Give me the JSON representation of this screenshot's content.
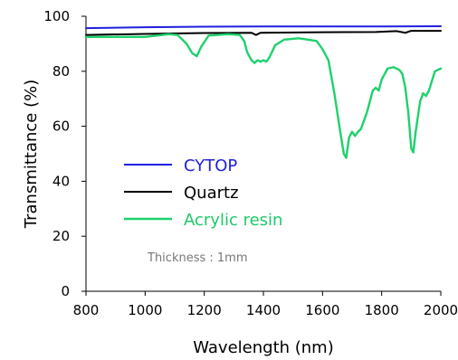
{
  "chart_data": {
    "type": "line",
    "xlabel": "Wavelength (nm)",
    "ylabel": "Transmittance (%)",
    "xlim": [
      800,
      2000
    ],
    "ylim": [
      0,
      100
    ],
    "x_ticks": [
      800,
      1000,
      1200,
      1400,
      1600,
      1800,
      2000
    ],
    "y_ticks": [
      0,
      20,
      40,
      60,
      80,
      100
    ],
    "grid": false,
    "legend_position": "center-left",
    "annotation": "Thickness : 1mm",
    "series": [
      {
        "name": "CYTOP",
        "color": "#1f1fe0",
        "points": [
          [
            800,
            95.7
          ],
          [
            1000,
            96.0
          ],
          [
            1200,
            96.2
          ],
          [
            1400,
            96.3
          ],
          [
            1600,
            96.3
          ],
          [
            1800,
            96.3
          ],
          [
            2000,
            96.4
          ]
        ]
      },
      {
        "name": "Quartz",
        "color": "#000000",
        "points": [
          [
            800,
            93.2
          ],
          [
            1000,
            93.6
          ],
          [
            1200,
            93.9
          ],
          [
            1360,
            94.0
          ],
          [
            1375,
            93.2
          ],
          [
            1390,
            94.0
          ],
          [
            1600,
            94.2
          ],
          [
            1780,
            94.3
          ],
          [
            1850,
            94.6
          ],
          [
            1880,
            94.0
          ],
          [
            1900,
            94.7
          ],
          [
            2000,
            94.7
          ]
        ]
      },
      {
        "name": "Acrylic resin",
        "color": "#1ed16c",
        "points": [
          [
            800,
            92.5
          ],
          [
            900,
            92.5
          ],
          [
            1000,
            92.5
          ],
          [
            1080,
            93.5
          ],
          [
            1110,
            93.2
          ],
          [
            1140,
            90.0
          ],
          [
            1160,
            86.5
          ],
          [
            1175,
            85.5
          ],
          [
            1190,
            89.0
          ],
          [
            1215,
            93.0
          ],
          [
            1280,
            93.5
          ],
          [
            1320,
            93.2
          ],
          [
            1335,
            91.0
          ],
          [
            1345,
            87.0
          ],
          [
            1360,
            84.0
          ],
          [
            1370,
            83.0
          ],
          [
            1380,
            84.0
          ],
          [
            1390,
            83.5
          ],
          [
            1400,
            84.0
          ],
          [
            1410,
            83.5
          ],
          [
            1420,
            85.0
          ],
          [
            1440,
            89.5
          ],
          [
            1470,
            91.5
          ],
          [
            1520,
            92.0
          ],
          [
            1580,
            91.0
          ],
          [
            1600,
            88.0
          ],
          [
            1620,
            84.0
          ],
          [
            1640,
            72.0
          ],
          [
            1660,
            58.0
          ],
          [
            1672,
            50.0
          ],
          [
            1680,
            48.5
          ],
          [
            1690,
            56.0
          ],
          [
            1700,
            58.0
          ],
          [
            1710,
            56.5
          ],
          [
            1720,
            58.0
          ],
          [
            1730,
            59.0
          ],
          [
            1750,
            65.0
          ],
          [
            1770,
            73.0
          ],
          [
            1780,
            74.0
          ],
          [
            1790,
            73.0
          ],
          [
            1800,
            77.0
          ],
          [
            1820,
            81.0
          ],
          [
            1840,
            81.5
          ],
          [
            1860,
            80.5
          ],
          [
            1870,
            79.0
          ],
          [
            1880,
            74.0
          ],
          [
            1890,
            65.0
          ],
          [
            1900,
            52.0
          ],
          [
            1907,
            50.5
          ],
          [
            1915,
            58.0
          ],
          [
            1930,
            69.0
          ],
          [
            1940,
            72.0
          ],
          [
            1950,
            71.0
          ],
          [
            1960,
            73.0
          ],
          [
            1980,
            80.0
          ],
          [
            2000,
            81.0
          ]
        ]
      }
    ]
  }
}
